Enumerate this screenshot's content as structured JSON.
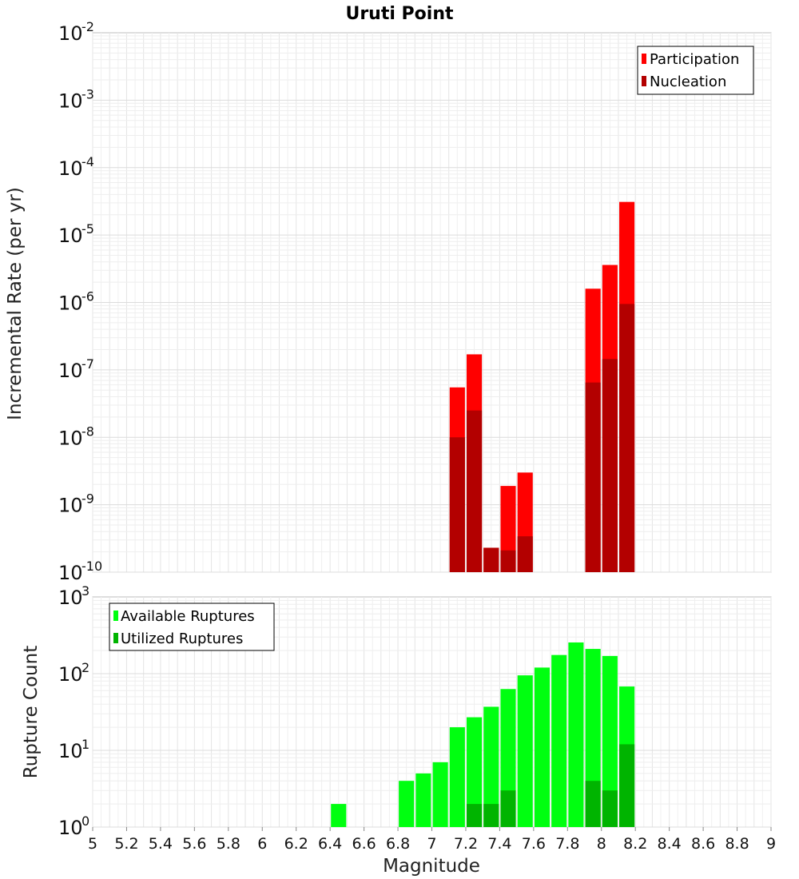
{
  "title": "Uruti Point",
  "chart_data": [
    {
      "type": "bar",
      "scale": "log",
      "ylabel": "Incremental Rate (per yr)",
      "ylim_exponents": [
        -10,
        -2
      ],
      "grid": true,
      "legend_position": "top-right",
      "colors": {
        "Participation": "#ff0000",
        "Nucleation": "#b30000"
      },
      "series": [
        {
          "name": "Participation",
          "points": [
            {
              "x": 7.15,
              "y": 5.5e-08
            },
            {
              "x": 7.25,
              "y": 1.7e-07
            },
            {
              "x": 7.35,
              "y": 2.3e-10
            },
            {
              "x": 7.45,
              "y": 1.9e-09
            },
            {
              "x": 7.55,
              "y": 3e-09
            },
            {
              "x": 7.95,
              "y": 1.6e-06
            },
            {
              "x": 8.05,
              "y": 3.6e-06
            },
            {
              "x": 8.15,
              "y": 3.1e-05
            }
          ]
        },
        {
          "name": "Nucleation",
          "points": [
            {
              "x": 7.15,
              "y": 1e-08
            },
            {
              "x": 7.25,
              "y": 2.5e-08
            },
            {
              "x": 7.35,
              "y": 2.3e-10
            },
            {
              "x": 7.45,
              "y": 2.1e-10
            },
            {
              "x": 7.55,
              "y": 3.4e-10
            },
            {
              "x": 7.95,
              "y": 6.5e-08
            },
            {
              "x": 8.05,
              "y": 1.45e-07
            },
            {
              "x": 8.15,
              "y": 9.5e-07
            }
          ]
        }
      ]
    },
    {
      "type": "bar",
      "scale": "log",
      "xlabel": "Magnitude",
      "ylabel": "Rupture Count",
      "xlim": [
        5,
        9
      ],
      "xticks": [
        "5",
        "5.2",
        "5.4",
        "5.6",
        "5.8",
        "6",
        "6.2",
        "6.4",
        "6.6",
        "6.8",
        "7",
        "7.2",
        "7.4",
        "7.6",
        "7.8",
        "8",
        "8.2",
        "8.4",
        "8.6",
        "8.8",
        "9"
      ],
      "ylim_exponents": [
        0,
        3
      ],
      "grid": true,
      "legend_position": "top-left",
      "colors": {
        "Available Ruptures": "#00ff10",
        "Utilized Ruptures": "#00b400"
      },
      "series": [
        {
          "name": "Available Ruptures",
          "points": [
            {
              "x": 6.45,
              "y": 2
            },
            {
              "x": 6.65,
              "y": 1
            },
            {
              "x": 6.85,
              "y": 4
            },
            {
              "x": 6.95,
              "y": 5
            },
            {
              "x": 7.05,
              "y": 7
            },
            {
              "x": 7.15,
              "y": 20
            },
            {
              "x": 7.25,
              "y": 27
            },
            {
              "x": 7.35,
              "y": 37
            },
            {
              "x": 7.45,
              "y": 63
            },
            {
              "x": 7.55,
              "y": 95
            },
            {
              "x": 7.65,
              "y": 120
            },
            {
              "x": 7.75,
              "y": 175
            },
            {
              "x": 7.85,
              "y": 255
            },
            {
              "x": 7.95,
              "y": 210
            },
            {
              "x": 8.05,
              "y": 170
            },
            {
              "x": 8.15,
              "y": 68
            }
          ]
        },
        {
          "name": "Utilized Ruptures",
          "points": [
            {
              "x": 7.15,
              "y": 1
            },
            {
              "x": 7.25,
              "y": 2
            },
            {
              "x": 7.35,
              "y": 2
            },
            {
              "x": 7.45,
              "y": 3
            },
            {
              "x": 7.55,
              "y": 1
            },
            {
              "x": 7.85,
              "y": 1
            },
            {
              "x": 7.95,
              "y": 4
            },
            {
              "x": 8.05,
              "y": 3
            },
            {
              "x": 8.15,
              "y": 12
            }
          ]
        }
      ]
    }
  ]
}
